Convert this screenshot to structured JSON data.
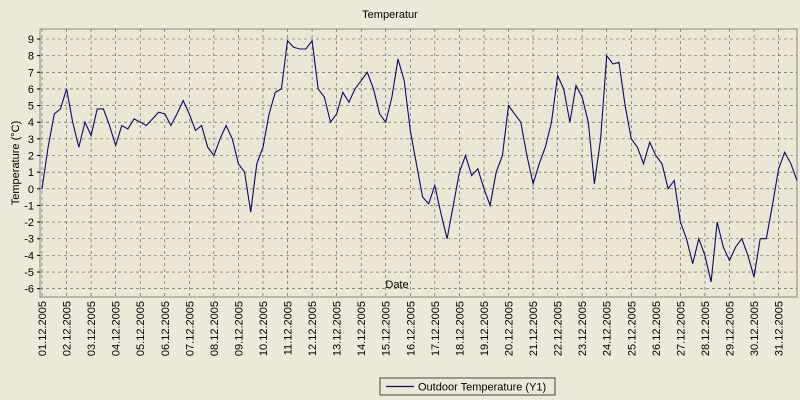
{
  "chart_data": {
    "type": "line",
    "title": "Temperatur",
    "x_label": "Date",
    "y_label": "Temperature (°C)",
    "categories": [
      "01.12.2005",
      null,
      null,
      null,
      "02.12.2005",
      null,
      null,
      null,
      "03.12.2005",
      null,
      null,
      null,
      "04.12.2005",
      null,
      null,
      null,
      "05.12.2005",
      null,
      null,
      null,
      "06.12.2005",
      null,
      null,
      null,
      "07.12.2005",
      null,
      null,
      null,
      "08.12.2005",
      null,
      null,
      null,
      "09.12.2005",
      null,
      null,
      null,
      "10.12.2005",
      null,
      null,
      null,
      "11.12.2005",
      null,
      null,
      null,
      "12.12.2005",
      null,
      null,
      null,
      "13.12.2005",
      null,
      null,
      null,
      "14.12.2005",
      null,
      null,
      null,
      "15.12.2005",
      null,
      null,
      null,
      "16.12.2005",
      null,
      null,
      null,
      "17.12.2005",
      null,
      null,
      null,
      "18.12.2005",
      null,
      null,
      null,
      "19.12.2005",
      null,
      null,
      null,
      "20.12.2005",
      null,
      null,
      null,
      "21.12.2005",
      null,
      null,
      null,
      "22.12.2005",
      null,
      null,
      null,
      "23.12.2005",
      null,
      null,
      null,
      "24.12.2005",
      null,
      null,
      null,
      "25.12.2005",
      null,
      null,
      null,
      "26.12.2005",
      null,
      null,
      null,
      "27.12.2005",
      null,
      null,
      null,
      "28.12.2005",
      null,
      null,
      null,
      "29.12.2005",
      null,
      null,
      null,
      "30.12.2005",
      null,
      null,
      null,
      "31.12.2005",
      null,
      null,
      null
    ],
    "series": [
      {
        "name": "Outdoor Temperature (Y1)",
        "color": "#0a0a6e",
        "values": [
          0,
          2.5,
          4.5,
          4.8,
          6,
          4,
          2.5,
          4,
          3.2,
          4.8,
          4.8,
          3.8,
          2.6,
          3.8,
          3.6,
          4.2,
          4,
          3.8,
          4.2,
          4.6,
          4.5,
          3.8,
          4.5,
          5.3,
          4.5,
          3.5,
          3.8,
          2.5,
          2,
          3,
          3.8,
          3,
          1.5,
          1,
          -1.4,
          1.5,
          2.5,
          4.5,
          5.8,
          6,
          8.9,
          8.5,
          8.4,
          8.4,
          8.9,
          6,
          5.5,
          4,
          4.5,
          5.8,
          5.2,
          6,
          6.5,
          7,
          6,
          4.5,
          4,
          5.5,
          7.8,
          6.5,
          3.5,
          1.5,
          -0.5,
          -0.9,
          0.2,
          -1.5,
          -3,
          -1,
          1,
          2,
          0.8,
          1.2,
          0,
          -1,
          1,
          2,
          5,
          4.5,
          4,
          2,
          0.3,
          1.5,
          2.5,
          4,
          6.8,
          6,
          4,
          6.2,
          5.5,
          4,
          0.3,
          3,
          8,
          7.5,
          7.6,
          5,
          3,
          2.5,
          1.5,
          2.8,
          2,
          1.5,
          0,
          0.5,
          -2,
          -3,
          -4.5,
          -3,
          -4,
          -5.6,
          -2,
          -3.5,
          -4.3,
          -3.5,
          -3,
          -4,
          -5.3,
          -3,
          -3,
          -1,
          1.2,
          2.2,
          1.5,
          0.5
        ]
      }
    ],
    "ylim": [
      -6.5,
      9.6
    ],
    "yticks": [
      -6,
      -5,
      -4,
      -3,
      -2,
      -1,
      0,
      1,
      2,
      3,
      4,
      5,
      6,
      7,
      8,
      9
    ],
    "grid": true
  }
}
